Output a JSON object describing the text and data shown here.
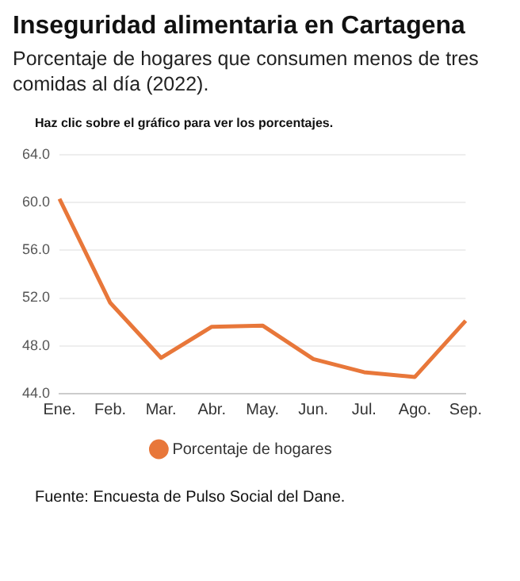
{
  "chart_data": {
    "type": "line",
    "title": "Inseguridad alimentaria en Cartagena",
    "subtitle": "Porcentaje de hogares que consumen menos de tres comidas al día (2022).",
    "annotations": [
      "Haz clic sobre el gráfico para ver los porcentajes.",
      "Fuente: Encuesta de Pulso Social del Dane."
    ],
    "categories": [
      "Ene.",
      "Feb.",
      "Mar.",
      "Abr.",
      "May.",
      "Jun.",
      "Jul.",
      "Ago.",
      "Sep."
    ],
    "series": [
      {
        "name": "Porcentaje de hogares",
        "color": "#e8773a",
        "values": [
          60.3,
          51.6,
          47.0,
          49.6,
          49.7,
          46.9,
          45.8,
          45.4,
          50.1
        ]
      }
    ],
    "ylim": [
      44,
      64
    ],
    "yticks": [
      {
        "value": 44,
        "label": "44.0"
      },
      {
        "value": 48,
        "label": "48.0"
      },
      {
        "value": 52,
        "label": "52.0"
      },
      {
        "value": 56,
        "label": "56.0"
      },
      {
        "value": 60,
        "label": "60.0"
      },
      {
        "value": 64,
        "label": "64.0"
      }
    ],
    "grid": "y",
    "legend": "bottom"
  }
}
